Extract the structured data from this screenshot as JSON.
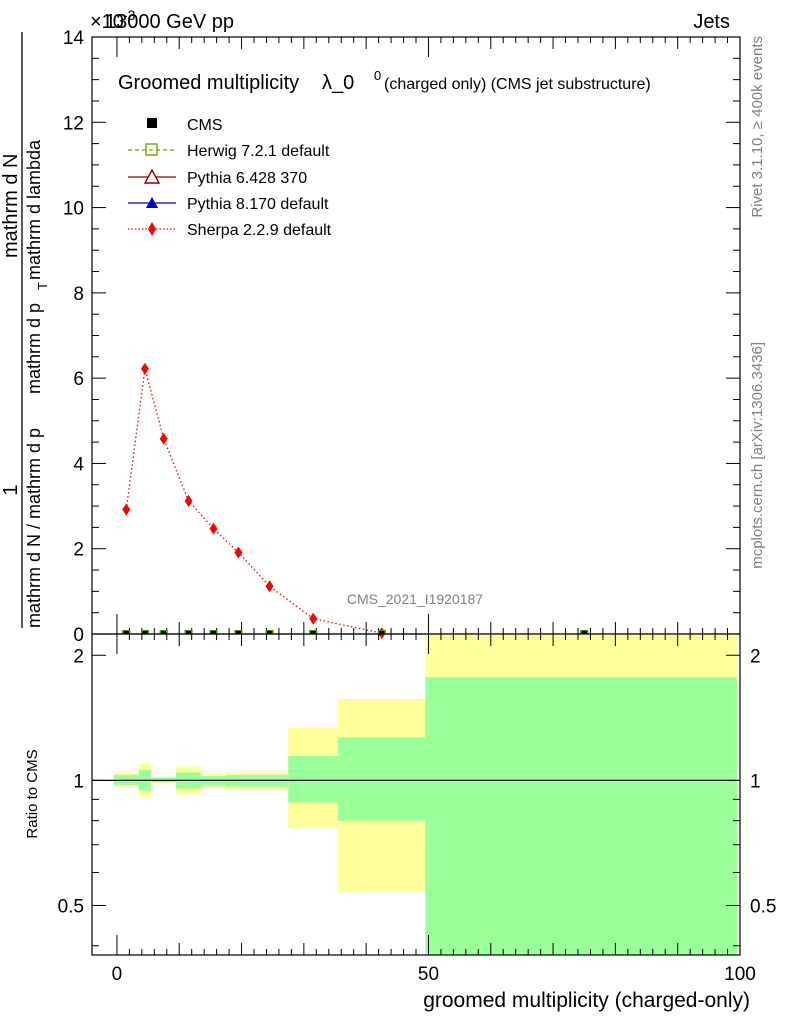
{
  "header": {
    "exponent_label": "×10",
    "exponent_value": "-3",
    "energy_label": "13000 GeV pp",
    "process_label": "Jets"
  },
  "side": {
    "rivet_label": "Rivet 3.1.10, ≥ 400k events",
    "mcplots_label": "mcplots.cern.ch [arXiv:1306.3436]"
  },
  "watermark": "CMS_2021_I1920187",
  "chart_data": [
    {
      "type": "line",
      "title_main": "Groomed multiplicity",
      "title_lambda": "λ_0",
      "title_sup": "0",
      "title_rest": " (charged only) (CMS jet substructure)",
      "ylabel_num": "1",
      "ylabel_mid": "mathrm d N / mathrm d p",
      "ylabel_top": "mathrm d N",
      "ylabel_long": "mathrm d p",
      "ylabel_sub": "T",
      "ylabel_end": " mathrm d lambda",
      "xlim": [
        -4,
        100
      ],
      "ylim": [
        0,
        14
      ],
      "yticks": [
        "0",
        "2",
        "4",
        "6",
        "8",
        "10",
        "12",
        "14"
      ],
      "legend_position": "top-left",
      "legend": [
        "CMS",
        "Herwig 7.2.1 default",
        "Pythia 6.428 370",
        "Pythia 8.170 default",
        "Sherpa 2.2.9 default"
      ],
      "series": [
        {
          "name": "Sherpa 2.2.9 default",
          "color": "#ff0000",
          "x": [
            1.5,
            4.5,
            7.5,
            11.5,
            15.5,
            19.5,
            24.5,
            31.5,
            42.5
          ],
          "values": [
            2.92,
            6.22,
            4.58,
            3.12,
            2.47,
            1.91,
            1.12,
            0.36,
            0.02
          ]
        },
        {
          "name": "CMS",
          "color": "#000000",
          "x": [
            1.5,
            4.5,
            7.5,
            11.5,
            15.5,
            19.5,
            24.5,
            31.5,
            42.5,
            75
          ],
          "values": [
            0.0,
            0.0,
            0.0,
            0.0,
            0.0,
            0.0,
            0.0,
            0.0,
            0.0,
            0.0
          ]
        }
      ]
    },
    {
      "type": "area",
      "ylabel": "Ratio to CMS",
      "xlabel": "groomed multiplicity (charged-only)",
      "xlim": [
        -4,
        100
      ],
      "ylim": [
        0.38,
        2.25
      ],
      "log_y": true,
      "yticks": [
        "0.5",
        "1",
        "2"
      ],
      "xticks": [
        "0",
        "50",
        "100"
      ],
      "band_colors": {
        "outer": "#ffff99",
        "inner": "#99ff99"
      },
      "bins": [
        {
          "x0": -0.5,
          "x1": 3.5,
          "outer": [
            0.965,
            1.045
          ],
          "inner": [
            0.975,
            1.03
          ]
        },
        {
          "x0": 3.5,
          "x1": 5.5,
          "outer": [
            0.91,
            1.095
          ],
          "inner": [
            0.945,
            1.06
          ]
        },
        {
          "x0": 5.5,
          "x1": 9.5,
          "outer": [
            0.985,
            1.02
          ],
          "inner": [
            0.99,
            1.015
          ]
        },
        {
          "x0": 9.5,
          "x1": 13.5,
          "outer": [
            0.925,
            1.08
          ],
          "inner": [
            0.955,
            1.045
          ]
        },
        {
          "x0": 13.5,
          "x1": 17.5,
          "outer": [
            0.96,
            1.04
          ],
          "inner": [
            0.975,
            1.025
          ]
        },
        {
          "x0": 17.5,
          "x1": 21.5,
          "outer": [
            0.95,
            1.045
          ],
          "inner": [
            0.965,
            1.03
          ]
        },
        {
          "x0": 21.5,
          "x1": 27.5,
          "outer": [
            0.95,
            1.045
          ],
          "inner": [
            0.965,
            1.03
          ]
        },
        {
          "x0": 27.5,
          "x1": 35.5,
          "outer": [
            0.77,
            1.34
          ],
          "inner": [
            0.885,
            1.145
          ]
        },
        {
          "x0": 35.5,
          "x1": 49.5,
          "outer": [
            0.54,
            1.57
          ],
          "inner": [
            0.8,
            1.27
          ]
        },
        {
          "x0": 49.5,
          "x1": 99.5,
          "outer": [
            0.38,
            2.25
          ],
          "inner": [
            0.38,
            1.77
          ]
        }
      ]
    }
  ]
}
